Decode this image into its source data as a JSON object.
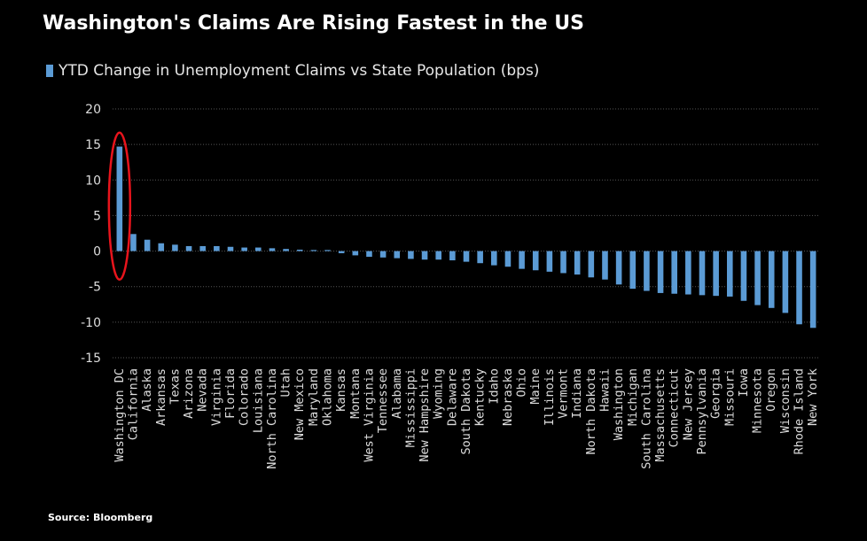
{
  "title": "Washington's Claims Are Rising Fastest in the US",
  "source": "Source: Bloomberg",
  "colors": {
    "background": "#000000",
    "bar": "#5b9bd5",
    "grid": "#555555",
    "highlight": "#e8141c",
    "text": "#ffffff"
  },
  "chart_data": {
    "type": "bar",
    "title": "Washington's Claims Are Rising Fastest in the US",
    "xlabel": "",
    "ylabel": "",
    "ylim": [
      -15,
      20
    ],
    "yticks": [
      20,
      15,
      10,
      5,
      0,
      -5,
      -10,
      -15
    ],
    "grid": true,
    "legend_position": "top-left",
    "highlighted_category": "Washington DC",
    "series": [
      {
        "name": "YTD Change in Unemployment Claims vs State Population (bps)",
        "values": [
          14.7,
          2.4,
          1.6,
          1.1,
          0.9,
          0.7,
          0.7,
          0.7,
          0.6,
          0.5,
          0.5,
          0.4,
          0.3,
          0.2,
          0.1,
          0.0,
          -0.3,
          -0.6,
          -0.8,
          -0.9,
          -1.0,
          -1.1,
          -1.2,
          -1.2,
          -1.3,
          -1.5,
          -1.7,
          -2.0,
          -2.2,
          -2.5,
          -2.7,
          -2.9,
          -3.1,
          -3.3,
          -3.7,
          -4.0,
          -4.7,
          -5.3,
          -5.6,
          -5.9,
          -6.0,
          -6.1,
          -6.2,
          -6.3,
          -6.4,
          -7.0,
          -7.6,
          -8.0,
          -8.7,
          -10.3,
          -10.8
        ]
      }
    ],
    "categories": [
      "Washington DC",
      "California",
      "Alaska",
      "Arkansas",
      "Texas",
      "Arizona",
      "Nevada",
      "Virginia",
      "Florida",
      "Colorado",
      "Louisiana",
      "North Carolina",
      "Utah",
      "New Mexico",
      "Maryland",
      "Oklahoma",
      "Kansas",
      "Montana",
      "West Virginia",
      "Tennessee",
      "Alabama",
      "Mississippi",
      "New Hampshire",
      "Wyoming",
      "Delaware",
      "South Dakota",
      "Kentucky",
      "Idaho",
      "Nebraska",
      "Ohio",
      "Maine",
      "Illinois",
      "Vermont",
      "Indiana",
      "North Dakota",
      "Hawaii",
      "Washington",
      "Michigan",
      "South Carolina",
      "Massachusetts",
      "Connecticut",
      "New Jersey",
      "Pennsylvania",
      "Georgia",
      "Missouri",
      "Iowa",
      "Minnesota",
      "Oregon",
      "Wisconsin",
      "Rhode Island",
      "New York"
    ]
  }
}
